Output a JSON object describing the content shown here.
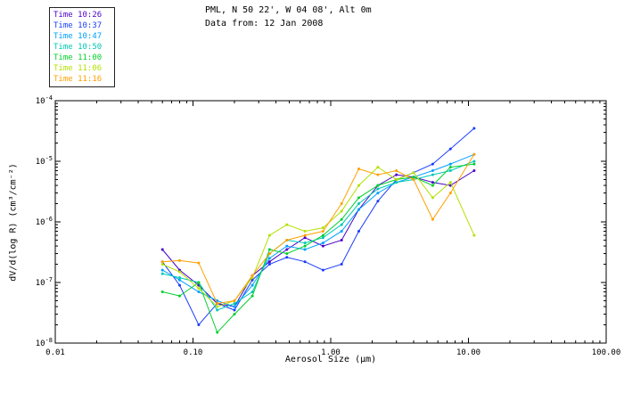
{
  "header": {
    "title": "PML, N 50 22', W 04 08', Alt 0m",
    "subtitle": "Data from: 12 Jan 2008"
  },
  "chart_data": {
    "type": "line",
    "title": "PML, N 50 22', W 04 08', Alt 0m",
    "subtitle": "Data from: 12 Jan 2008",
    "xlabel": "Aerosol Size (μm)",
    "ylabel": "dV/d(log R) (cm³/cm⁻²)",
    "x_scale": "log",
    "y_scale": "log",
    "xlim": [
      0.01,
      100
    ],
    "ylim": [
      1e-08,
      0.0001
    ],
    "x_ticks": [
      0.01,
      0.1,
      1,
      10,
      100
    ],
    "x_tick_labels": [
      "0.01",
      "0.10",
      "1.00",
      "10.00",
      "100.00"
    ],
    "y_tick_exponents": [
      -8,
      -7,
      -6,
      -5,
      -4
    ],
    "legend_position": "top-left",
    "grid": false,
    "x": [
      0.06,
      0.08,
      0.11,
      0.15,
      0.2,
      0.27,
      0.36,
      0.48,
      0.65,
      0.88,
      1.2,
      1.6,
      2.2,
      3.0,
      4.0,
      5.5,
      7.4,
      11.0
    ],
    "series": [
      {
        "name": "Time 10:26",
        "color": "#4a00c8",
        "values": [
          3.5e-07,
          1.6e-07,
          9e-08,
          4.5e-08,
          4e-08,
          1.3e-07,
          2.2e-07,
          3.5e-07,
          5.5e-07,
          4e-07,
          5e-07,
          1.6e-06,
          4e-06,
          6e-06,
          5.5e-06,
          4.5e-06,
          4e-06,
          7e-06
        ]
      },
      {
        "name": "Time 10:37",
        "color": "#1a3cff",
        "values": [
          2.2e-07,
          9e-08,
          2e-08,
          4.5e-08,
          3.5e-08,
          1.1e-07,
          2e-07,
          2.6e-07,
          2.2e-07,
          1.6e-07,
          2e-07,
          7e-07,
          2.2e-06,
          5e-06,
          6.5e-06,
          9e-06,
          1.6e-05,
          3.5e-05
        ]
      },
      {
        "name": "Time 10:47",
        "color": "#00a0ff",
        "values": [
          1.6e-07,
          1.1e-07,
          7e-08,
          5e-08,
          4e-08,
          9e-08,
          2.5e-07,
          4e-07,
          3.5e-07,
          4.5e-07,
          7e-07,
          1.6e-06,
          3e-06,
          4.5e-06,
          5.5e-06,
          7e-06,
          9e-06,
          1.3e-05
        ]
      },
      {
        "name": "Time 10:50",
        "color": "#00c8b4",
        "values": [
          1.4e-07,
          1.2e-07,
          1e-07,
          3.5e-08,
          4.5e-08,
          7e-08,
          3e-07,
          5e-07,
          4.5e-07,
          5.5e-07,
          9e-07,
          2e-06,
          3.5e-06,
          4.5e-06,
          5e-06,
          6e-06,
          7e-06,
          1e-05
        ]
      },
      {
        "name": "Time 11:00",
        "color": "#00d02a",
        "values": [
          7e-08,
          6e-08,
          1e-07,
          1.5e-08,
          3e-08,
          6e-08,
          3.5e-07,
          3e-07,
          4e-07,
          6e-07,
          1.1e-06,
          2.5e-06,
          4e-06,
          5e-06,
          5.5e-06,
          4e-06,
          8e-06,
          9e-06
        ]
      },
      {
        "name": "Time 11:06",
        "color": "#b4e000",
        "values": [
          2e-07,
          1.5e-07,
          8e-08,
          4e-08,
          5e-08,
          1.2e-07,
          6e-07,
          9e-07,
          7e-07,
          8e-07,
          1.5e-06,
          4e-06,
          8e-06,
          5e-06,
          6.5e-06,
          2.5e-06,
          4.5e-06,
          6e-07
        ]
      },
      {
        "name": "Time 11:16",
        "color": "#ffa000",
        "values": [
          2.2e-07,
          2.3e-07,
          2.1e-07,
          4.5e-08,
          5e-08,
          1.3e-07,
          3e-07,
          5e-07,
          6e-07,
          7e-07,
          2e-06,
          7.5e-06,
          6e-06,
          7e-06,
          5e-06,
          1.1e-06,
          3e-06,
          1.3e-05
        ]
      }
    ]
  }
}
